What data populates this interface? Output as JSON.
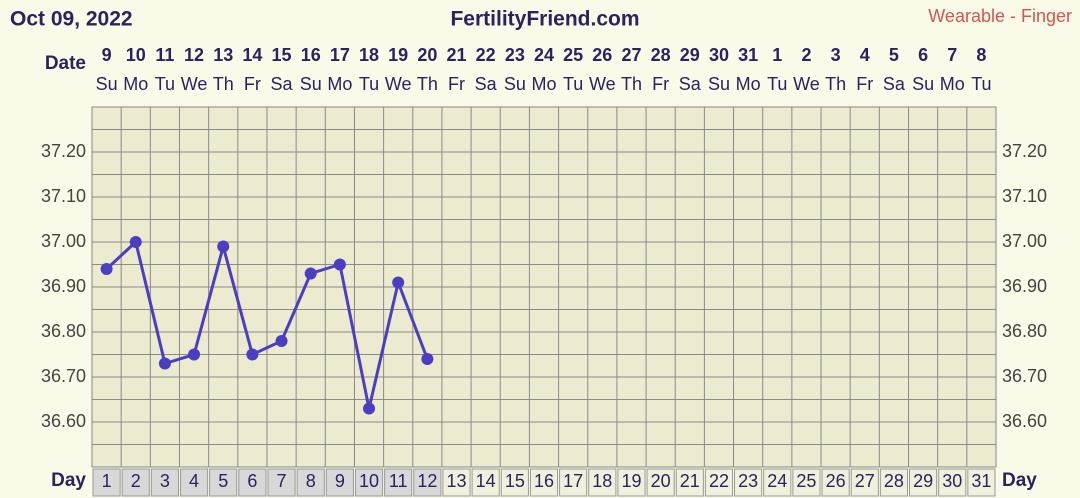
{
  "chart_data": {
    "type": "line",
    "title": "FertilityFriend.com",
    "date": "Oct 09, 2022",
    "subtitle": "Wearable - Finger",
    "date_label": "Date",
    "day_label": "Day",
    "dates": [
      "9",
      "10",
      "11",
      "12",
      "13",
      "14",
      "15",
      "16",
      "17",
      "18",
      "19",
      "20",
      "21",
      "22",
      "23",
      "24",
      "25",
      "26",
      "27",
      "28",
      "29",
      "30",
      "31",
      "1",
      "2",
      "3",
      "4",
      "5",
      "6",
      "7",
      "8"
    ],
    "weekdays": [
      "Su",
      "Mo",
      "Tu",
      "We",
      "Th",
      "Fr",
      "Sa",
      "Su",
      "Mo",
      "Tu",
      "We",
      "Th",
      "Fr",
      "Sa",
      "Su",
      "Mo",
      "Tu",
      "We",
      "Th",
      "Fr",
      "Sa",
      "Su",
      "Mo",
      "Tu",
      "We",
      "Th",
      "Fr",
      "Sa",
      "Su",
      "Mo",
      "Tu"
    ],
    "categories": [
      "1",
      "2",
      "3",
      "4",
      "5",
      "6",
      "7",
      "8",
      "9",
      "10",
      "11",
      "12",
      "13",
      "14",
      "15",
      "16",
      "17",
      "18",
      "19",
      "20",
      "21",
      "22",
      "23",
      "24",
      "25",
      "26",
      "27",
      "28",
      "29",
      "30",
      "31"
    ],
    "series": [
      {
        "color": "#4a3fc2",
        "values": [
          36.94,
          37.0,
          36.73,
          36.75,
          36.99,
          36.75,
          36.78,
          36.93,
          36.95,
          36.63,
          36.91,
          36.74,
          null,
          null,
          null,
          null,
          null,
          null,
          null,
          null,
          null,
          null,
          null,
          null,
          null,
          null,
          null,
          null,
          null,
          null,
          null
        ]
      }
    ],
    "ylim": [
      36.5,
      37.3
    ],
    "yticks": [
      {
        "value": 36.6,
        "label": "36.60"
      },
      {
        "value": 36.7,
        "label": "36.70"
      },
      {
        "value": 36.8,
        "label": "36.80"
      },
      {
        "value": 36.9,
        "label": "36.90"
      },
      {
        "value": 37.0,
        "label": "37.00"
      },
      {
        "value": 37.1,
        "label": "37.10"
      },
      {
        "value": 37.2,
        "label": "37.20"
      }
    ],
    "grid": true
  }
}
